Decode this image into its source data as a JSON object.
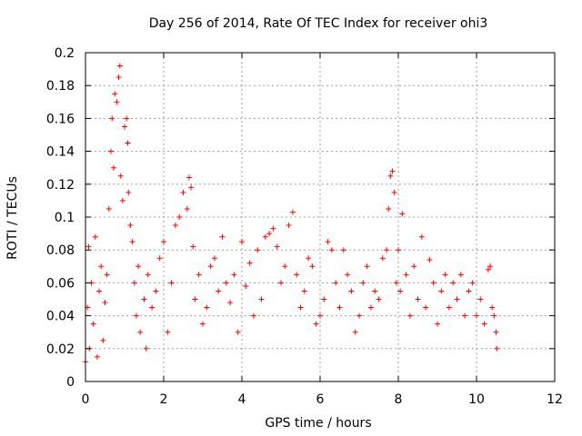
{
  "chart_data": {
    "type": "scatter",
    "title": "Day 256 of 2014, Rate Of TEC Index for receiver ohi3",
    "xlabel": "GPS time / hours",
    "ylabel": "ROTI / TECUs",
    "xlim": [
      0,
      12
    ],
    "ylim": [
      0,
      0.2
    ],
    "xticks": [
      0,
      2,
      4,
      6,
      8,
      10,
      12
    ],
    "xtick_labels": [
      "0",
      "2",
      "4",
      "6",
      "8",
      "10",
      "12"
    ],
    "yticks": [
      0,
      0.02,
      0.04,
      0.06,
      0.08,
      0.1,
      0.12,
      0.14,
      0.16,
      0.18,
      0.2
    ],
    "ytick_labels": [
      "0",
      "0.02",
      "0.04",
      "0.06",
      "0.08",
      "0.1",
      "0.12",
      "0.14",
      "0.16",
      "0.18",
      "0.2"
    ],
    "grid": true,
    "marker": "+",
    "color": "#ff0000",
    "series": [
      {
        "name": "ROTI",
        "points": [
          [
            0.0,
            0.012
          ],
          [
            0.05,
            0.045
          ],
          [
            0.08,
            0.082
          ],
          [
            0.1,
            0.02
          ],
          [
            0.15,
            0.06
          ],
          [
            0.2,
            0.035
          ],
          [
            0.25,
            0.088
          ],
          [
            0.3,
            0.015
          ],
          [
            0.35,
            0.055
          ],
          [
            0.4,
            0.07
          ],
          [
            0.45,
            0.025
          ],
          [
            0.5,
            0.048
          ],
          [
            0.55,
            0.065
          ],
          [
            0.6,
            0.105
          ],
          [
            0.65,
            0.14
          ],
          [
            0.68,
            0.16
          ],
          [
            0.72,
            0.13
          ],
          [
            0.75,
            0.175
          ],
          [
            0.8,
            0.17
          ],
          [
            0.85,
            0.185
          ],
          [
            0.88,
            0.192
          ],
          [
            0.9,
            0.125
          ],
          [
            0.95,
            0.11
          ],
          [
            1.0,
            0.155
          ],
          [
            1.05,
            0.16
          ],
          [
            1.08,
            0.145
          ],
          [
            1.1,
            0.115
          ],
          [
            1.15,
            0.095
          ],
          [
            1.2,
            0.085
          ],
          [
            1.25,
            0.06
          ],
          [
            1.3,
            0.04
          ],
          [
            1.35,
            0.07
          ],
          [
            1.4,
            0.03
          ],
          [
            1.5,
            0.05
          ],
          [
            1.55,
            0.02
          ],
          [
            1.6,
            0.065
          ],
          [
            1.7,
            0.045
          ],
          [
            1.8,
            0.055
          ],
          [
            1.9,
            0.075
          ],
          [
            2.0,
            0.085
          ],
          [
            2.1,
            0.03
          ],
          [
            2.2,
            0.06
          ],
          [
            2.3,
            0.095
          ],
          [
            2.4,
            0.1
          ],
          [
            2.5,
            0.115
          ],
          [
            2.6,
            0.105
          ],
          [
            2.65,
            0.124
          ],
          [
            2.7,
            0.118
          ],
          [
            2.75,
            0.082
          ],
          [
            2.8,
            0.05
          ],
          [
            2.9,
            0.065
          ],
          [
            3.0,
            0.035
          ],
          [
            3.1,
            0.045
          ],
          [
            3.2,
            0.07
          ],
          [
            3.3,
            0.075
          ],
          [
            3.4,
            0.055
          ],
          [
            3.5,
            0.088
          ],
          [
            3.6,
            0.06
          ],
          [
            3.7,
            0.048
          ],
          [
            3.8,
            0.065
          ],
          [
            3.9,
            0.03
          ],
          [
            4.0,
            0.085
          ],
          [
            4.1,
            0.058
          ],
          [
            4.2,
            0.072
          ],
          [
            4.3,
            0.04
          ],
          [
            4.4,
            0.08
          ],
          [
            4.5,
            0.05
          ],
          [
            4.6,
            0.088
          ],
          [
            4.7,
            0.09
          ],
          [
            4.8,
            0.093
          ],
          [
            4.9,
            0.082
          ],
          [
            5.0,
            0.06
          ],
          [
            5.1,
            0.07
          ],
          [
            5.2,
            0.095
          ],
          [
            5.3,
            0.103
          ],
          [
            5.4,
            0.065
          ],
          [
            5.5,
            0.045
          ],
          [
            5.6,
            0.055
          ],
          [
            5.7,
            0.075
          ],
          [
            5.8,
            0.07
          ],
          [
            5.9,
            0.035
          ],
          [
            6.0,
            0.04
          ],
          [
            6.1,
            0.05
          ],
          [
            6.2,
            0.085
          ],
          [
            6.3,
            0.08
          ],
          [
            6.4,
            0.06
          ],
          [
            6.5,
            0.045
          ],
          [
            6.6,
            0.08
          ],
          [
            6.7,
            0.065
          ],
          [
            6.8,
            0.055
          ],
          [
            6.9,
            0.03
          ],
          [
            7.0,
            0.04
          ],
          [
            7.1,
            0.06
          ],
          [
            7.2,
            0.07
          ],
          [
            7.3,
            0.045
          ],
          [
            7.4,
            0.055
          ],
          [
            7.5,
            0.05
          ],
          [
            7.6,
            0.075
          ],
          [
            7.7,
            0.08
          ],
          [
            7.75,
            0.105
          ],
          [
            7.8,
            0.125
          ],
          [
            7.85,
            0.128
          ],
          [
            7.9,
            0.115
          ],
          [
            7.95,
            0.06
          ],
          [
            8.0,
            0.08
          ],
          [
            8.05,
            0.055
          ],
          [
            8.1,
            0.102
          ],
          [
            8.2,
            0.065
          ],
          [
            8.3,
            0.04
          ],
          [
            8.4,
            0.07
          ],
          [
            8.5,
            0.05
          ],
          [
            8.6,
            0.088
          ],
          [
            8.7,
            0.045
          ],
          [
            8.8,
            0.074
          ],
          [
            8.9,
            0.06
          ],
          [
            9.0,
            0.035
          ],
          [
            9.1,
            0.055
          ],
          [
            9.2,
            0.065
          ],
          [
            9.3,
            0.045
          ],
          [
            9.4,
            0.06
          ],
          [
            9.5,
            0.05
          ],
          [
            9.6,
            0.065
          ],
          [
            9.7,
            0.04
          ],
          [
            9.8,
            0.055
          ],
          [
            9.9,
            0.06
          ],
          [
            10.0,
            0.04
          ],
          [
            10.1,
            0.05
          ],
          [
            10.2,
            0.035
          ],
          [
            10.3,
            0.068
          ],
          [
            10.35,
            0.07
          ],
          [
            10.4,
            0.045
          ],
          [
            10.45,
            0.04
          ],
          [
            10.5,
            0.03
          ],
          [
            10.52,
            0.02
          ]
        ]
      }
    ]
  }
}
